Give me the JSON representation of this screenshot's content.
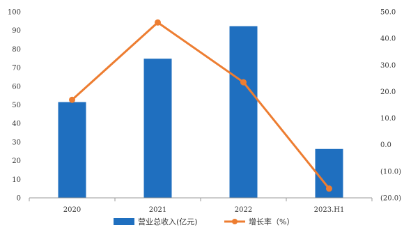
{
  "chart_data": {
    "type": "bar",
    "categories": [
      "2020",
      "2021",
      "2022",
      "2023.H1"
    ],
    "series": [
      {
        "name": "营业总收入(亿元)",
        "type": "bar",
        "axis": "left",
        "color": "#1f6fbf",
        "values": [
          51.5,
          74.8,
          92.3,
          26.3
        ]
      },
      {
        "name": "增长率（%）",
        "type": "line",
        "axis": "right",
        "color": "#ed7d31",
        "values": [
          16.9,
          46.0,
          23.5,
          -16.5
        ]
      }
    ],
    "left_axis": {
      "ylim": [
        0,
        100
      ],
      "ticks": [
        0,
        10,
        20,
        30,
        40,
        50,
        60,
        70,
        80,
        90,
        100
      ],
      "tick_labels": [
        "0",
        "10",
        "20",
        "30",
        "40",
        "50",
        "60",
        "70",
        "80",
        "90",
        "100"
      ]
    },
    "right_axis": {
      "ylim": [
        -20,
        50
      ],
      "ticks": [
        -20,
        -10,
        0,
        10,
        20,
        30,
        40,
        50
      ],
      "tick_labels": [
        "(20.0)",
        "(10.0)",
        "0.0",
        "10.0",
        "20.0",
        "30.0",
        "40.0",
        "50.0"
      ],
      "negative_color": "#c00000"
    },
    "title": "",
    "xlabel": "",
    "ylabel": "",
    "grid": false,
    "legend": "bottom-center"
  }
}
